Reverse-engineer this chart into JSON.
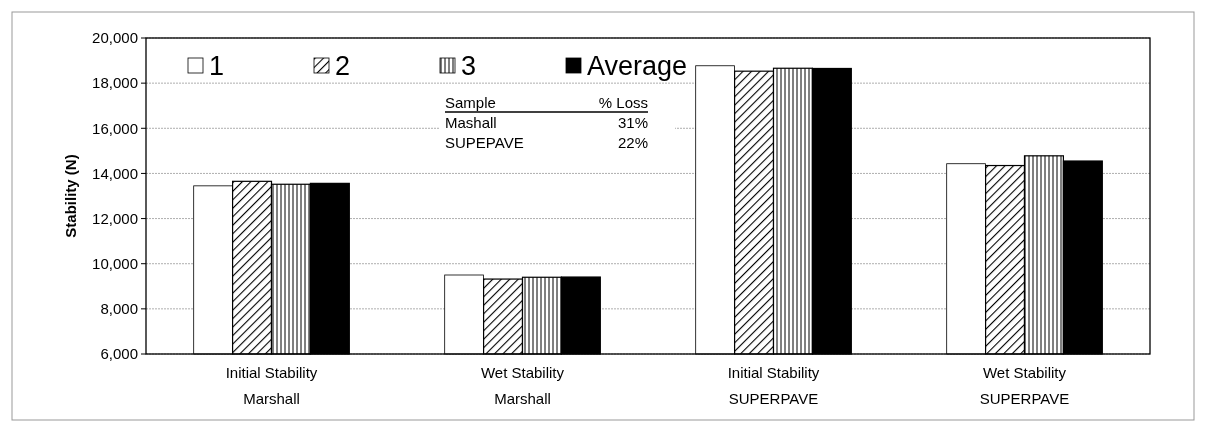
{
  "chart_data": {
    "type": "bar",
    "ylabel": "Stability (N)",
    "categories": [
      "Initial Stability\nMarshall",
      "Wet Stability\nMarshall",
      "Initial Stability\nSUPERPAVE",
      "Wet Stability\nSUPERPAVE"
    ],
    "series": [
      {
        "name": "1",
        "color": "#ffffff",
        "values": [
          13450,
          9500,
          18770,
          14430
        ]
      },
      {
        "name": "2",
        "color": "#000000",
        "values": [
          13650,
          9320,
          18530,
          14350
        ]
      },
      {
        "name": "3",
        "color": "#000000",
        "values": [
          13520,
          9400,
          18660,
          14780
        ]
      },
      {
        "name": "Average",
        "color": "#000000",
        "values": [
          13560,
          9410,
          18650,
          14550
        ]
      }
    ],
    "ylim": [
      6000,
      20000
    ],
    "yticks": [
      {
        "value": 6000,
        "label": "6,000"
      },
      {
        "value": 8000,
        "label": "8,000"
      },
      {
        "value": 10000,
        "label": "10,000"
      },
      {
        "value": 12000,
        "label": "12,000"
      },
      {
        "value": 14000,
        "label": "14,000"
      },
      {
        "value": 16000,
        "label": "16,000"
      },
      {
        "value": 18000,
        "label": "18,000"
      },
      {
        "value": 20000,
        "label": "20,000"
      }
    ],
    "grid": "y",
    "legend": "top",
    "annotations": [
      "Sample",
      "% Loss",
      "Mashall",
      "31%",
      "SUPEPAVE",
      "22%"
    ]
  }
}
